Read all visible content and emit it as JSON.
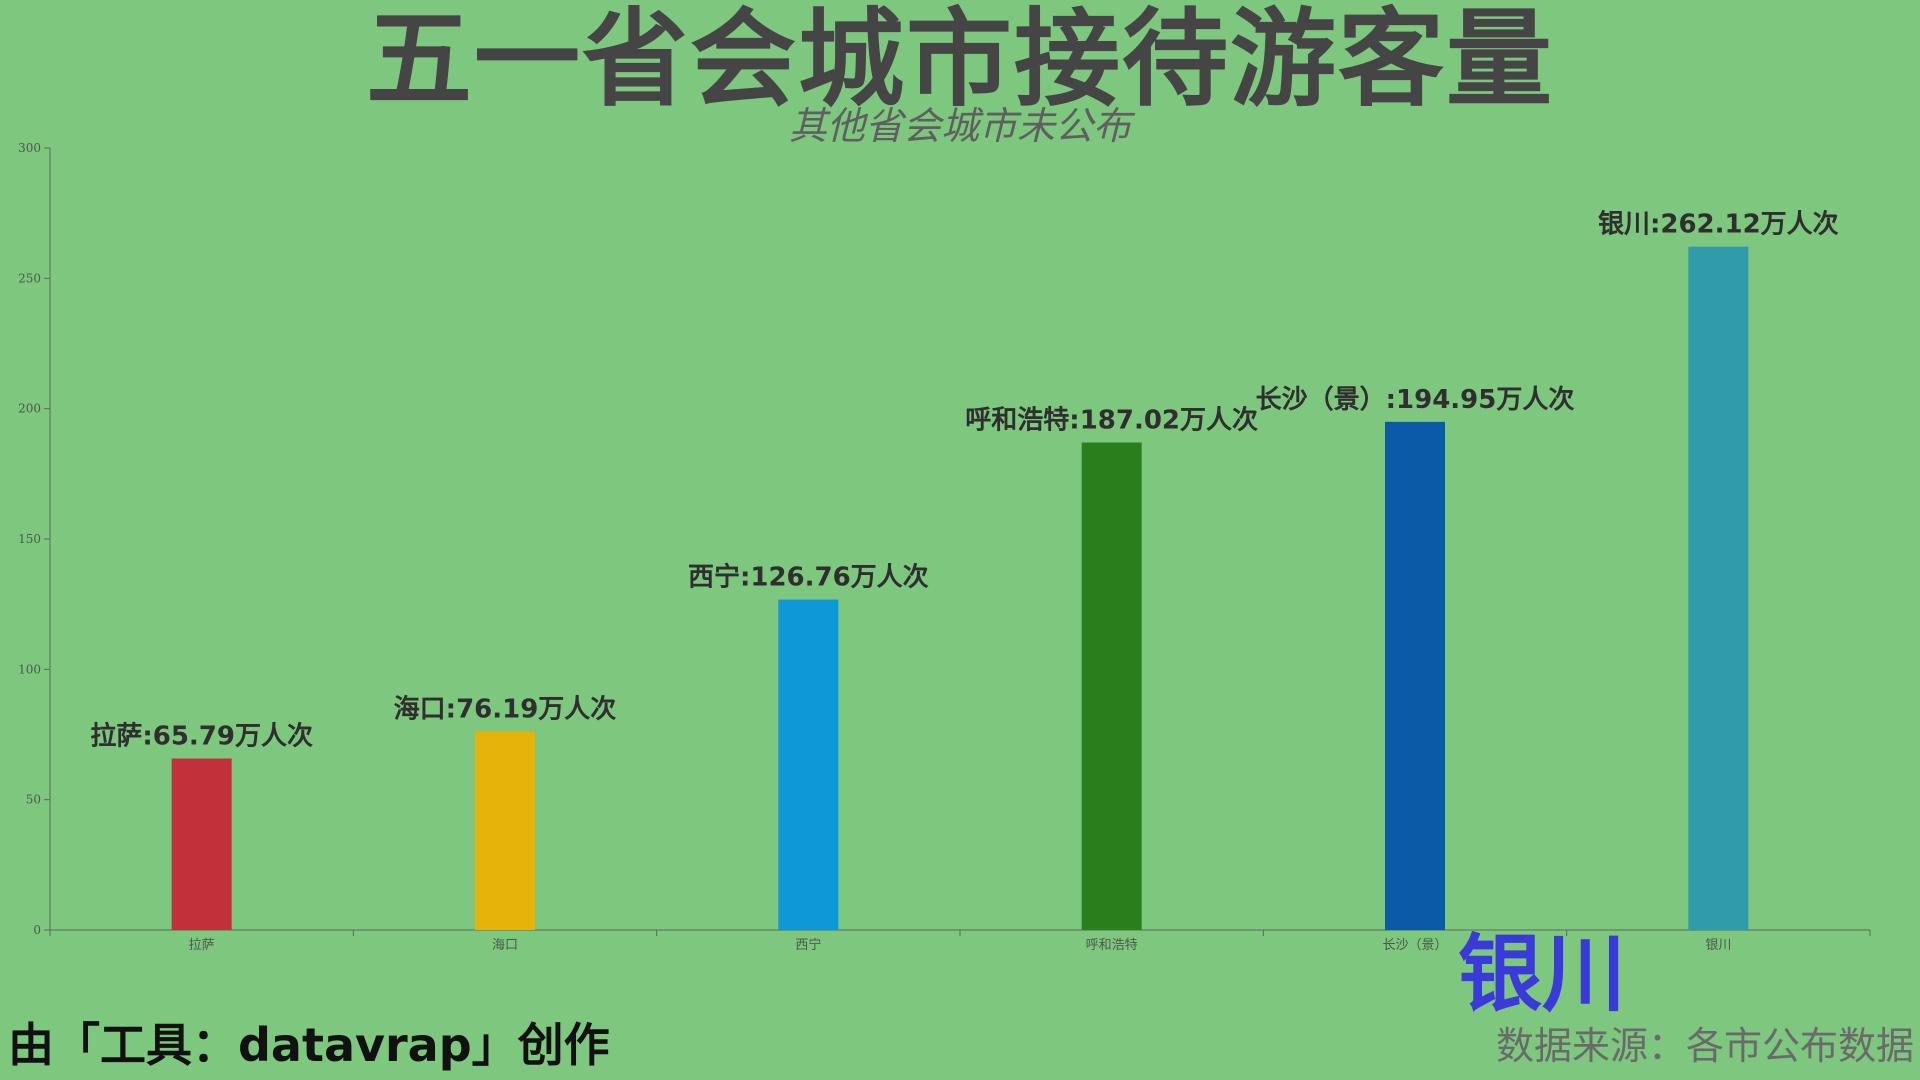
{
  "title": "五一省会城市接待游客量",
  "subtitle": "其他省会城市未公布",
  "credit": "由「工具：datavrap」创作",
  "source": "数据来源：各市公布数据",
  "highlight_label": "银川",
  "chart_data": {
    "type": "bar",
    "title": "五一省会城市接待游客量",
    "subtitle": "其他省会城市未公布",
    "categories": [
      "拉萨",
      "海口",
      "西宁",
      "呼和浩特",
      "长沙（景）",
      "银川"
    ],
    "values": [
      65.79,
      76.19,
      126.76,
      187.02,
      194.95,
      262.12
    ],
    "data_labels": [
      "拉萨:65.79万人次",
      "海口:76.19万人次",
      "西宁:126.76万人次",
      "呼和浩特:187.02万人次",
      "长沙（景）:194.95万人次",
      "银川:262.12万人次"
    ],
    "colors": [
      "#c2303a",
      "#e6b30a",
      "#0f98d8",
      "#2a7f1c",
      "#0b5aa8",
      "#2f9bab"
    ],
    "y_ticks": [
      0,
      50,
      100,
      150,
      200,
      250,
      300
    ],
    "ylim": [
      0,
      300
    ],
    "xlabel": "",
    "ylabel": "",
    "grid": false,
    "legend": "none"
  }
}
